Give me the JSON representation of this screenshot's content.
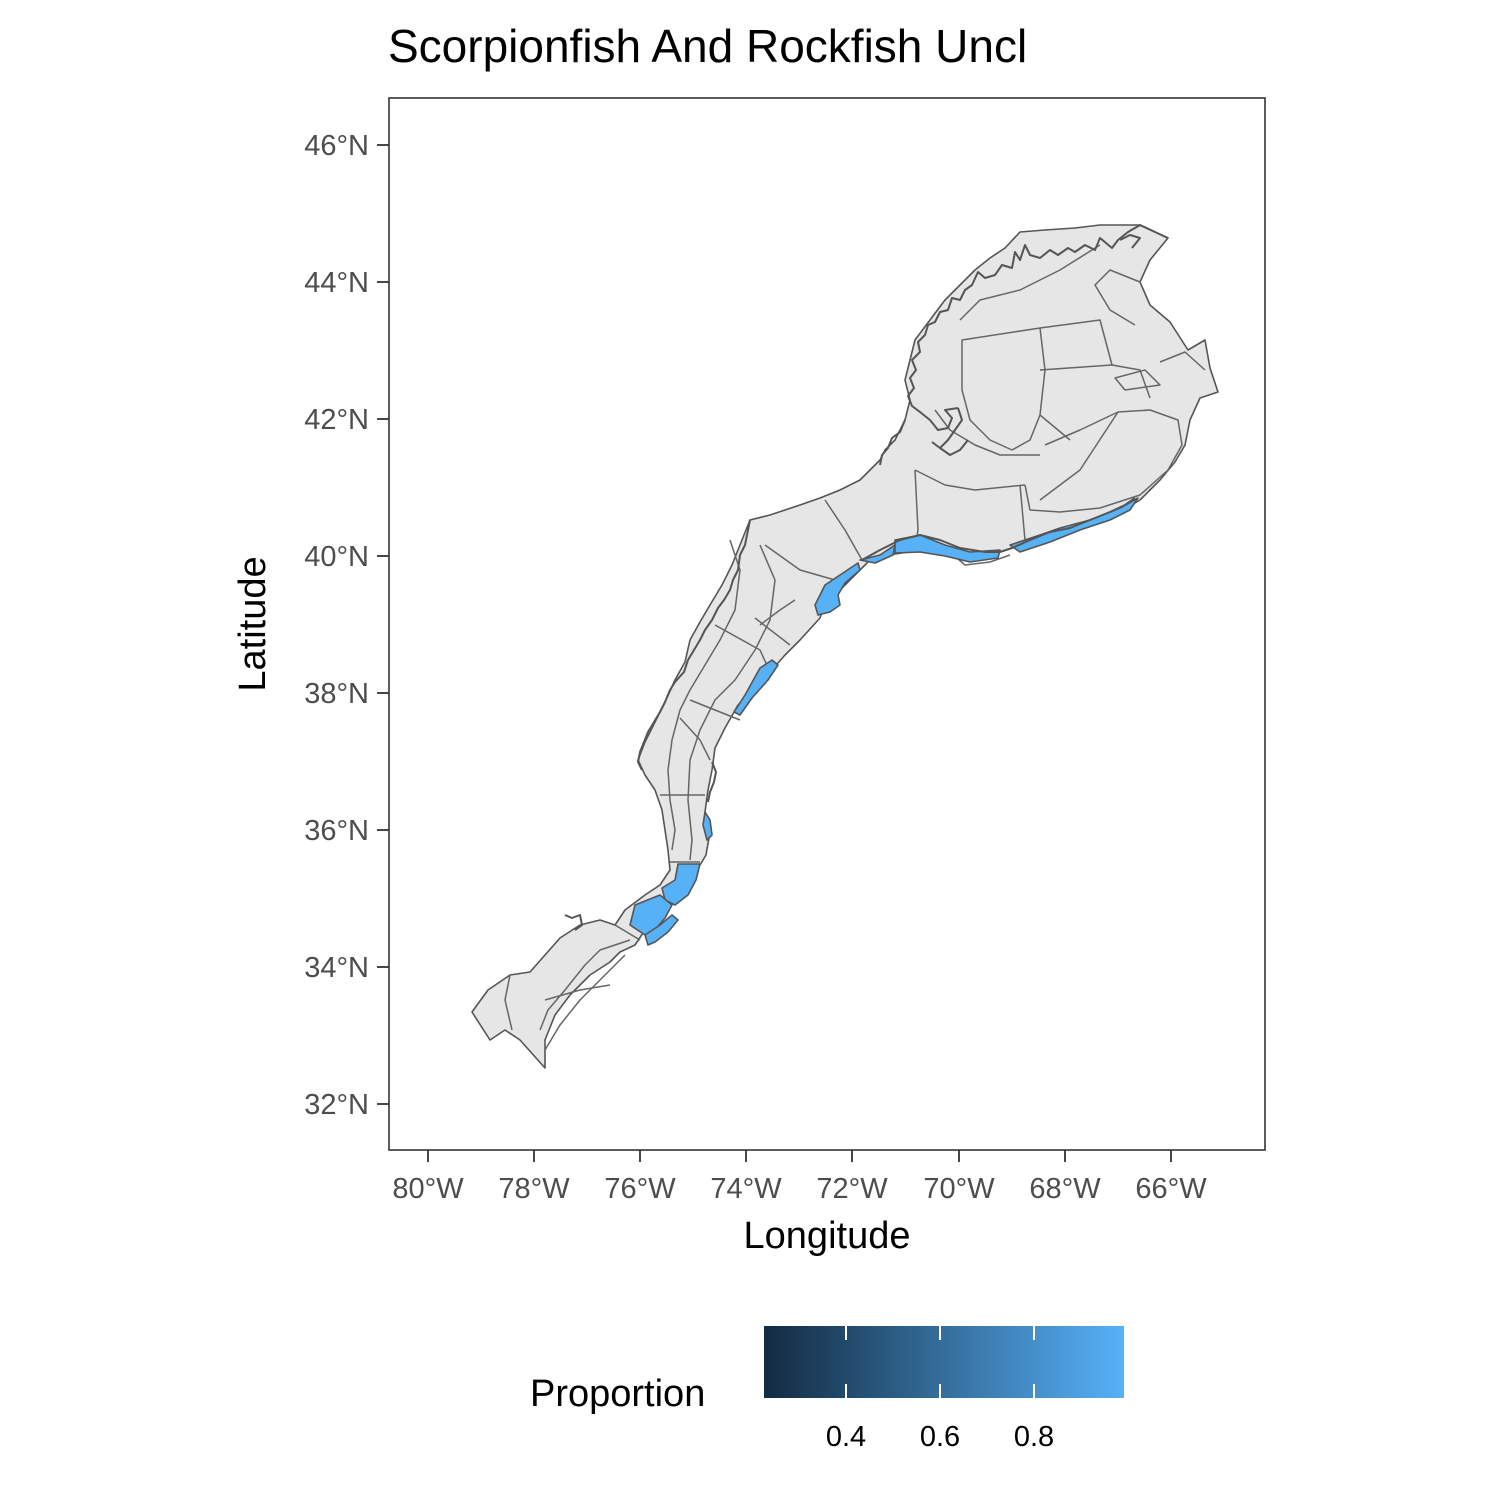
{
  "chart_data": {
    "type": "map",
    "title": "Scorpionfish And Rockfish Uncl",
    "xlabel": "Longitude",
    "ylabel": "Latitude",
    "x_ticks": [
      "80°W",
      "78°W",
      "76°W",
      "74°W",
      "72°W",
      "70°W",
      "68°W",
      "66°W"
    ],
    "x_tick_values": [
      -80,
      -78,
      -76,
      -74,
      -72,
      -70,
      -68,
      -66
    ],
    "y_ticks": [
      "32°N",
      "34°N",
      "36°N",
      "38°N",
      "40°N",
      "42°N",
      "44°N",
      "46°N"
    ],
    "y_tick_values": [
      32,
      34,
      36,
      38,
      40,
      42,
      44,
      46
    ],
    "xlim": [
      -80.75,
      -64.25
    ],
    "ylim": [
      31.35,
      46.7
    ],
    "grid": false,
    "legend": {
      "title": "Proportion",
      "position": "bottom",
      "labels": [
        "0.4",
        "0.6",
        "0.8"
      ],
      "label_values": [
        0.4,
        0.6,
        0.8
      ],
      "range": [
        0.22,
        1.0
      ],
      "color_low": "#132b43",
      "color_high": "#56b1f7"
    },
    "fill_colors": {
      "no_data": "#e6e6e6",
      "high_proportion": "#56b1f7",
      "outline": "#555555"
    },
    "highlighted_regions": [
      "shelf-break strata from ~34.5°N to ~41°N",
      "Cape Hatteras inner strata"
    ]
  }
}
